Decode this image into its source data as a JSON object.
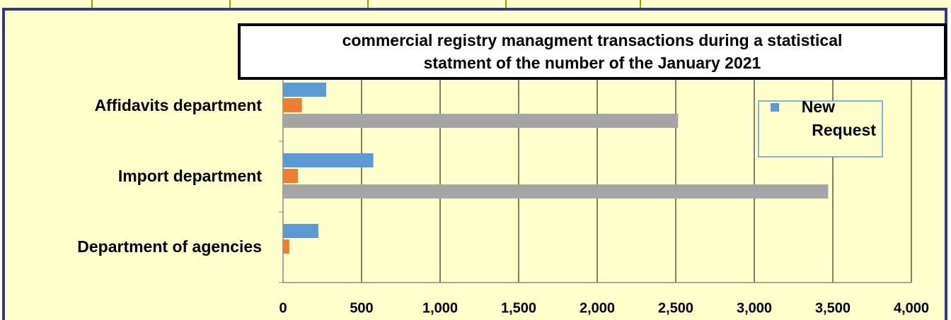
{
  "chart_data": {
    "type": "bar",
    "orientation": "horizontal",
    "title": [
      "commercial registry managment transactions during a statistical",
      "statment of the number of the January 2021"
    ],
    "categories": [
      "Affidavits department",
      "Import department",
      "Department of agencies"
    ],
    "series": [
      {
        "name": "New Request",
        "color": "#5b9bd5",
        "values": [
          275,
          575,
          225
        ]
      },
      {
        "color": "#ed7d31",
        "values": [
          120,
          95,
          40
        ]
      },
      {
        "color": "#a5a5a5",
        "values": [
          2515,
          3470,
          5
        ]
      }
    ],
    "xlim": [
      0,
      4000
    ],
    "xticks": [
      0,
      500,
      {
        "value": 1000,
        "label": "1,000"
      },
      {
        "value": 1500,
        "label": "1,500"
      },
      {
        "value": 2000,
        "label": "2,000"
      },
      {
        "value": 2500,
        "label": "2,500"
      },
      {
        "value": 3000,
        "label": "3,000"
      },
      {
        "value": 3500,
        "label": "3,500"
      },
      {
        "value": 4000,
        "label": "4,000"
      }
    ],
    "grid": true,
    "legend": "upper right"
  }
}
